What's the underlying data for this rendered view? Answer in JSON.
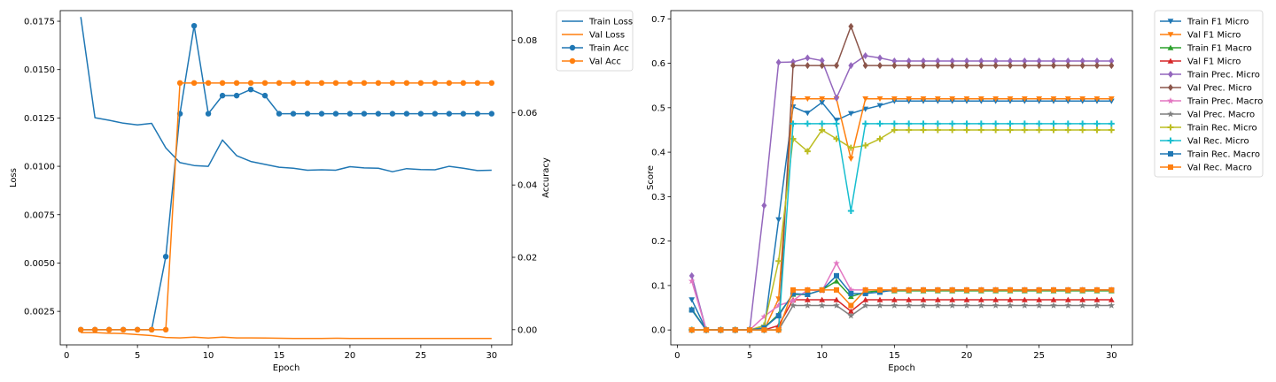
{
  "chart_data": [
    {
      "type": "line",
      "xlabel": "Epoch",
      "ylabel": "Loss",
      "y2label": "Accuracy",
      "xlim": [
        -0.45,
        31.45
      ],
      "ylim": [
        0.000768,
        0.01805
      ],
      "y2lim": [
        -0.0042,
        0.0882
      ],
      "xticks": [
        0,
        5,
        10,
        15,
        20,
        25,
        30
      ],
      "xtick_labels": [
        "0",
        "5",
        "10",
        "15",
        "20",
        "25",
        "30"
      ],
      "yticks": [
        0.0025,
        0.005,
        0.0075,
        0.01,
        0.0125,
        0.015,
        0.0175
      ],
      "ytick_labels": [
        "0.0025",
        "0.0050",
        "0.0075",
        "0.0100",
        "0.0125",
        "0.0150",
        "0.0175"
      ],
      "y2ticks": [
        0,
        0.02,
        0.04,
        0.06,
        0.08
      ],
      "y2tick_labels": [
        "0.00",
        "0.02",
        "0.04",
        "0.06",
        "0.08"
      ],
      "x": [
        1,
        2,
        3,
        4,
        5,
        6,
        7,
        8,
        9,
        10,
        11,
        12,
        13,
        14,
        15,
        16,
        17,
        18,
        19,
        20,
        21,
        22,
        23,
        24,
        25,
        26,
        27,
        28,
        29,
        30
      ],
      "grid": false,
      "legend_position": "outside-right",
      "series": [
        {
          "name": "Train Loss",
          "axis": "left",
          "color": "#1f77b4",
          "marker": "none",
          "values": [
            0.01772,
            0.01251,
            0.01238,
            0.01223,
            0.01214,
            0.01222,
            0.01095,
            0.01019,
            0.01004,
            0.01,
            0.01136,
            0.01055,
            0.01025,
            0.0101,
            0.00995,
            0.0099,
            0.0098,
            0.00982,
            0.0098,
            0.00998,
            0.00992,
            0.0099,
            0.00972,
            0.00988,
            0.00983,
            0.00982,
            0.01,
            0.0099,
            0.00978,
            0.0098
          ]
        },
        {
          "name": "Val Loss",
          "axis": "left",
          "color": "#ff7f0e",
          "marker": "none",
          "values": [
            0.0014,
            0.0014,
            0.00137,
            0.00135,
            0.0013,
            0.00125,
            0.00115,
            0.00113,
            0.00117,
            0.00112,
            0.00117,
            0.00113,
            0.00113,
            0.00112,
            0.00111,
            0.0011,
            0.0011,
            0.0011,
            0.00111,
            0.0011,
            0.0011,
            0.0011,
            0.0011,
            0.0011,
            0.0011,
            0.0011,
            0.0011,
            0.0011,
            0.0011,
            0.0011
          ]
        },
        {
          "name": "Train Acc",
          "axis": "right",
          "color": "#1f77b4",
          "marker": "circle",
          "values": [
            0,
            0,
            0,
            0,
            0,
            0,
            0.0202,
            0.0597,
            0.084,
            0.0597,
            0.0647,
            0.0647,
            0.0664,
            0.0647,
            0.0597,
            0.0597,
            0.0597,
            0.0597,
            0.0597,
            0.0597,
            0.0597,
            0.0597,
            0.0597,
            0.0597,
            0.0597,
            0.0597,
            0.0597,
            0.0597,
            0.0597,
            0.0597
          ]
        },
        {
          "name": "Val Acc",
          "axis": "right",
          "color": "#ff7f0e",
          "marker": "circle",
          "values": [
            0,
            0,
            0,
            0,
            0,
            0,
            0,
            0.0682,
            0.0682,
            0.0682,
            0.0682,
            0.0682,
            0.0682,
            0.0682,
            0.0682,
            0.0682,
            0.0682,
            0.0682,
            0.0682,
            0.0682,
            0.0682,
            0.0682,
            0.0682,
            0.0682,
            0.0682,
            0.0682,
            0.0682,
            0.0682,
            0.0682,
            0.0682
          ]
        }
      ]
    },
    {
      "type": "line",
      "xlabel": "Epoch",
      "ylabel": "Score",
      "xlim": [
        -0.45,
        31.45
      ],
      "ylim": [
        -0.0335,
        0.7185
      ],
      "xticks": [
        0,
        5,
        10,
        15,
        20,
        25,
        30
      ],
      "xtick_labels": [
        "0",
        "5",
        "10",
        "15",
        "20",
        "25",
        "30"
      ],
      "yticks": [
        0,
        0.1,
        0.2,
        0.3,
        0.4,
        0.5,
        0.6,
        0.7
      ],
      "ytick_labels": [
        "0.0",
        "0.1",
        "0.2",
        "0.3",
        "0.4",
        "0.5",
        "0.6",
        "0.7"
      ],
      "x": [
        1,
        2,
        3,
        4,
        5,
        6,
        7,
        8,
        9,
        10,
        11,
        12,
        13,
        14,
        15,
        16,
        17,
        18,
        19,
        20,
        21,
        22,
        23,
        24,
        25,
        26,
        27,
        28,
        29,
        30
      ],
      "grid": false,
      "legend_position": "outside-right",
      "series": [
        {
          "name": "Train F1 Micro",
          "color": "#1f77b4",
          "marker": "tri_down",
          "values": [
            0.068,
            0,
            0,
            0,
            0,
            0,
            0.248,
            0.502,
            0.488,
            0.512,
            0.472,
            0.487,
            0.497,
            0.505,
            0.515,
            0.515,
            0.515,
            0.515,
            0.515,
            0.515,
            0.515,
            0.515,
            0.515,
            0.515,
            0.515,
            0.515,
            0.515,
            0.515,
            0.515,
            0.515
          ]
        },
        {
          "name": "Val F1 Micro",
          "color": "#ff7f0e",
          "marker": "tri_down",
          "values": [
            0,
            0,
            0,
            0,
            0,
            0,
            0.07,
            0.52,
            0.52,
            0.52,
            0.52,
            0.385,
            0.52,
            0.52,
            0.52,
            0.52,
            0.52,
            0.52,
            0.52,
            0.52,
            0.52,
            0.52,
            0.52,
            0.52,
            0.52,
            0.52,
            0.52,
            0.52,
            0.52,
            0.52
          ]
        },
        {
          "name": "Train F1 Macro",
          "color": "#2ca02c",
          "marker": "tri_up",
          "values": [
            0.047,
            0,
            0,
            0,
            0,
            0.005,
            0.035,
            0.08,
            0.08,
            0.09,
            0.11,
            0.075,
            0.085,
            0.088,
            0.088,
            0.088,
            0.088,
            0.088,
            0.088,
            0.088,
            0.088,
            0.088,
            0.088,
            0.088,
            0.088,
            0.088,
            0.088,
            0.088,
            0.088,
            0.088
          ]
        },
        {
          "name": "Val F1 Micro",
          "color": "#d62728",
          "marker": "tri_up",
          "values": [
            0,
            0,
            0,
            0,
            0,
            0,
            0.01,
            0.068,
            0.068,
            0.068,
            0.068,
            0.042,
            0.068,
            0.068,
            0.068,
            0.068,
            0.068,
            0.068,
            0.068,
            0.068,
            0.068,
            0.068,
            0.068,
            0.068,
            0.068,
            0.068,
            0.068,
            0.068,
            0.068,
            0.068
          ]
        },
        {
          "name": "Train Prec. Micro",
          "color": "#9467bd",
          "marker": "diamond",
          "values": [
            0.122,
            0,
            0,
            0,
            0,
            0.28,
            0.602,
            0.603,
            0.612,
            0.606,
            0.522,
            0.595,
            0.617,
            0.612,
            0.605,
            0.605,
            0.605,
            0.605,
            0.605,
            0.605,
            0.605,
            0.605,
            0.605,
            0.605,
            0.605,
            0.605,
            0.605,
            0.605,
            0.605,
            0.605
          ]
        },
        {
          "name": "Val Prec. Micro",
          "color": "#8c564b",
          "marker": "diamond",
          "values": [
            0,
            0,
            0,
            0,
            0,
            0,
            0,
            0.595,
            0.595,
            0.595,
            0.595,
            0.683,
            0.595,
            0.595,
            0.595,
            0.595,
            0.595,
            0.595,
            0.595,
            0.595,
            0.595,
            0.595,
            0.595,
            0.595,
            0.595,
            0.595,
            0.595,
            0.595,
            0.595,
            0.595
          ]
        },
        {
          "name": "Train Prec. Macro",
          "color": "#e377c2",
          "marker": "star",
          "values": [
            0.11,
            0,
            0,
            0,
            0,
            0.03,
            0.055,
            0.066,
            0.09,
            0.088,
            0.15,
            0.09,
            0.09,
            0.09,
            0.09,
            0.09,
            0.09,
            0.09,
            0.09,
            0.09,
            0.09,
            0.09,
            0.09,
            0.09,
            0.09,
            0.09,
            0.09,
            0.09,
            0.09,
            0.09
          ]
        },
        {
          "name": "Val Prec. Macro",
          "color": "#7f7f7f",
          "marker": "star",
          "values": [
            0,
            0,
            0,
            0,
            0,
            0,
            0,
            0.055,
            0.055,
            0.055,
            0.055,
            0.032,
            0.055,
            0.055,
            0.055,
            0.055,
            0.055,
            0.055,
            0.055,
            0.055,
            0.055,
            0.055,
            0.055,
            0.055,
            0.055,
            0.055,
            0.055,
            0.055,
            0.055,
            0.055
          ]
        },
        {
          "name": "Train Rec. Micro",
          "color": "#bcbd22",
          "marker": "plus",
          "values": [
            0,
            0,
            0,
            0,
            0,
            0.01,
            0.155,
            0.43,
            0.402,
            0.45,
            0.43,
            0.41,
            0.415,
            0.43,
            0.45,
            0.45,
            0.45,
            0.45,
            0.45,
            0.45,
            0.45,
            0.45,
            0.45,
            0.45,
            0.45,
            0.45,
            0.45,
            0.45,
            0.45,
            0.45
          ]
        },
        {
          "name": "Val Rec. Micro",
          "color": "#17becf",
          "marker": "plus",
          "values": [
            0,
            0,
            0,
            0,
            0,
            0,
            0,
            0.464,
            0.464,
            0.464,
            0.464,
            0.268,
            0.464,
            0.464,
            0.464,
            0.464,
            0.464,
            0.464,
            0.464,
            0.464,
            0.464,
            0.464,
            0.464,
            0.464,
            0.464,
            0.464,
            0.464,
            0.464,
            0.464,
            0.464
          ]
        },
        {
          "name": "Train Rec. Macro",
          "color": "#1f77b4",
          "marker": "square",
          "values": [
            0.045,
            0,
            0,
            0,
            0,
            0.005,
            0.032,
            0.082,
            0.08,
            0.09,
            0.122,
            0.082,
            0.082,
            0.085,
            0.09,
            0.09,
            0.09,
            0.09,
            0.09,
            0.09,
            0.09,
            0.09,
            0.09,
            0.09,
            0.09,
            0.09,
            0.09,
            0.09,
            0.09,
            0.09
          ]
        },
        {
          "name": "Val Rec. Macro",
          "color": "#ff7f0e",
          "marker": "square",
          "values": [
            0,
            0,
            0,
            0,
            0,
            0,
            0,
            0.09,
            0.09,
            0.09,
            0.09,
            0.055,
            0.09,
            0.09,
            0.09,
            0.09,
            0.09,
            0.09,
            0.09,
            0.09,
            0.09,
            0.09,
            0.09,
            0.09,
            0.09,
            0.09,
            0.09,
            0.09,
            0.09,
            0.09
          ]
        }
      ]
    }
  ]
}
